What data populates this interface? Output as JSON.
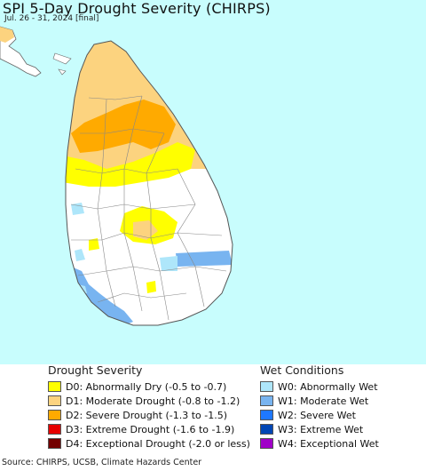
{
  "title": "SPI 5-Day Drought Severity (CHIRPS)",
  "subtitle": "Jul. 26 - 31, 2024 [final]",
  "map": {
    "ocean_color": "#c8fdfd",
    "land_color": "#ffffff",
    "border_color": "#888888"
  },
  "legend": {
    "drought": {
      "header": "Drought Severity",
      "items": [
        {
          "label": "D0: Abnormally Dry (-0.5 to -0.7)",
          "color": "#ffff00"
        },
        {
          "label": "D1: Moderate Drought (-0.8 to -1.2)",
          "color": "#fcd37f"
        },
        {
          "label": "D2: Severe Drought (-1.3 to -1.5)",
          "color": "#ffaa00"
        },
        {
          "label": "D3: Extreme Drought (-1.6 to -1.9)",
          "color": "#e60000"
        },
        {
          "label": "D4: Exceptional Drought (-2.0 or less)",
          "color": "#730000"
        }
      ]
    },
    "wet": {
      "header": "Wet Conditions",
      "items": [
        {
          "label": "W0: Abnormally Wet",
          "color": "#aee6fa"
        },
        {
          "label": "W1: Moderate Wet",
          "color": "#78b4f0"
        },
        {
          "label": "W2: Severe Wet",
          "color": "#1e78ff"
        },
        {
          "label": "W3: Extreme Wet",
          "color": "#0046b4"
        },
        {
          "label": "W4: Exceptional Wet",
          "color": "#a000c8"
        }
      ]
    }
  },
  "footer": "Source: CHIRPS, UCSB, Climate Hazards Center"
}
